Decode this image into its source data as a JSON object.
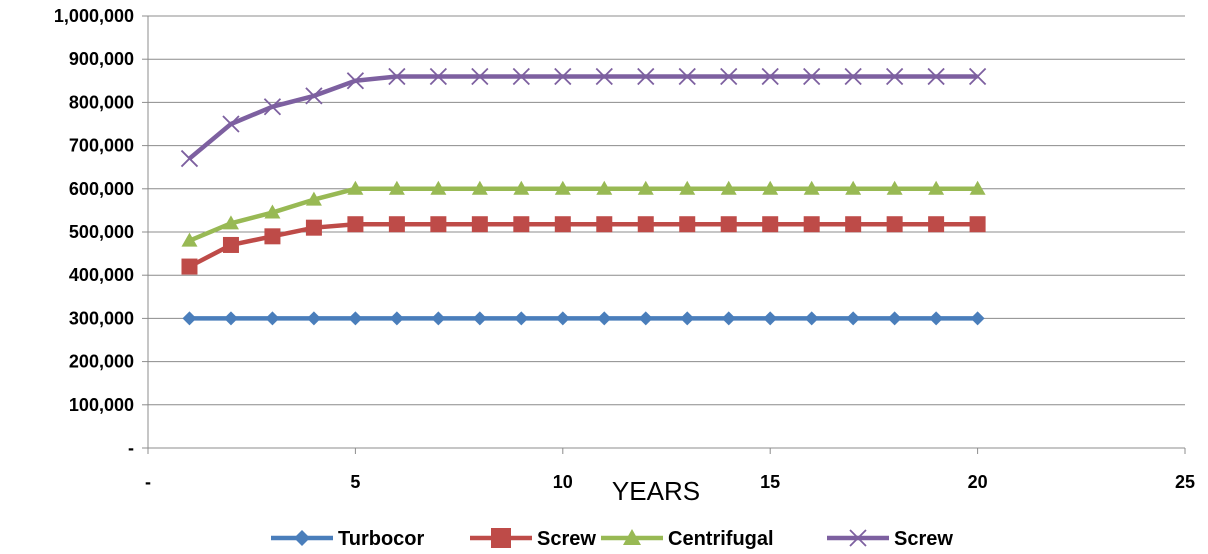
{
  "chart_data": {
    "type": "line",
    "title": "",
    "xlabel": "YEARS",
    "ylabel": "",
    "xlim": [
      0,
      25
    ],
    "ylim": [
      0,
      1000000
    ],
    "x_ticks": [
      0,
      5,
      10,
      15,
      20,
      25
    ],
    "x_tick_labels": [
      "-",
      "5",
      "10",
      "15",
      "20",
      "25"
    ],
    "y_ticks": [
      0,
      100000,
      200000,
      300000,
      400000,
      500000,
      600000,
      700000,
      800000,
      900000,
      1000000
    ],
    "y_tick_labels": [
      "-",
      "100,000",
      "200,000",
      "300,000",
      "400,000",
      "500,000",
      "600,000",
      "700,000",
      "800,000",
      "900,000",
      "1,000,000"
    ],
    "grid": "horizontal",
    "legend_position": "bottom",
    "x": [
      1,
      2,
      3,
      4,
      5,
      6,
      7,
      8,
      9,
      10,
      11,
      12,
      13,
      14,
      15,
      16,
      17,
      18,
      19,
      20
    ],
    "series": [
      {
        "name": "Turbocor",
        "color": "#4a7ebb",
        "marker": "diamond",
        "values": [
          300000,
          300000,
          300000,
          300000,
          300000,
          300000,
          300000,
          300000,
          300000,
          300000,
          300000,
          300000,
          300000,
          300000,
          300000,
          300000,
          300000,
          300000,
          300000,
          300000
        ]
      },
      {
        "name": "Screw",
        "color": "#be4b48",
        "marker": "square",
        "values": [
          420000,
          470000,
          490000,
          510000,
          518000,
          518000,
          518000,
          518000,
          518000,
          518000,
          518000,
          518000,
          518000,
          518000,
          518000,
          518000,
          518000,
          518000,
          518000,
          518000
        ]
      },
      {
        "name": "Centrifugal",
        "color": "#98b954",
        "marker": "triangle",
        "values": [
          480000,
          520000,
          545000,
          575000,
          600000,
          600000,
          600000,
          600000,
          600000,
          600000,
          600000,
          600000,
          600000,
          600000,
          600000,
          600000,
          600000,
          600000,
          600000,
          600000
        ]
      },
      {
        "name": "Screw",
        "color": "#7d60a0",
        "marker": "x",
        "values": [
          670000,
          750000,
          790000,
          815000,
          850000,
          860000,
          860000,
          860000,
          860000,
          860000,
          860000,
          860000,
          860000,
          860000,
          860000,
          860000,
          860000,
          860000,
          860000,
          860000
        ]
      }
    ]
  }
}
